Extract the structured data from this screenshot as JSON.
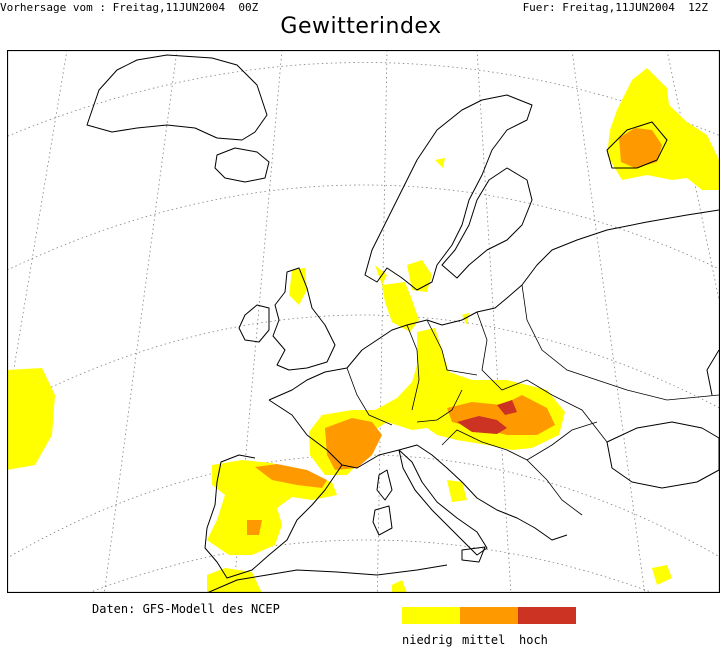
{
  "header": {
    "forecast_from": "Vorhersage vom : Freitag,11JUN2004  00Z",
    "valid_for": "Fuer: Freitag,11JUN2004  12Z"
  },
  "title": "Gewitterindex",
  "credit": "Daten: GFS-Modell des NCEP",
  "legend": {
    "items": [
      {
        "label": "niedrig",
        "color": "#ffff00"
      },
      {
        "label": "mittel",
        "color": "#ff9900"
      },
      {
        "label": "hoch",
        "color": "#cc3322"
      }
    ]
  },
  "colors": {
    "land_outline": "#000000",
    "graticule": "#808080",
    "background": "#ffffff"
  }
}
